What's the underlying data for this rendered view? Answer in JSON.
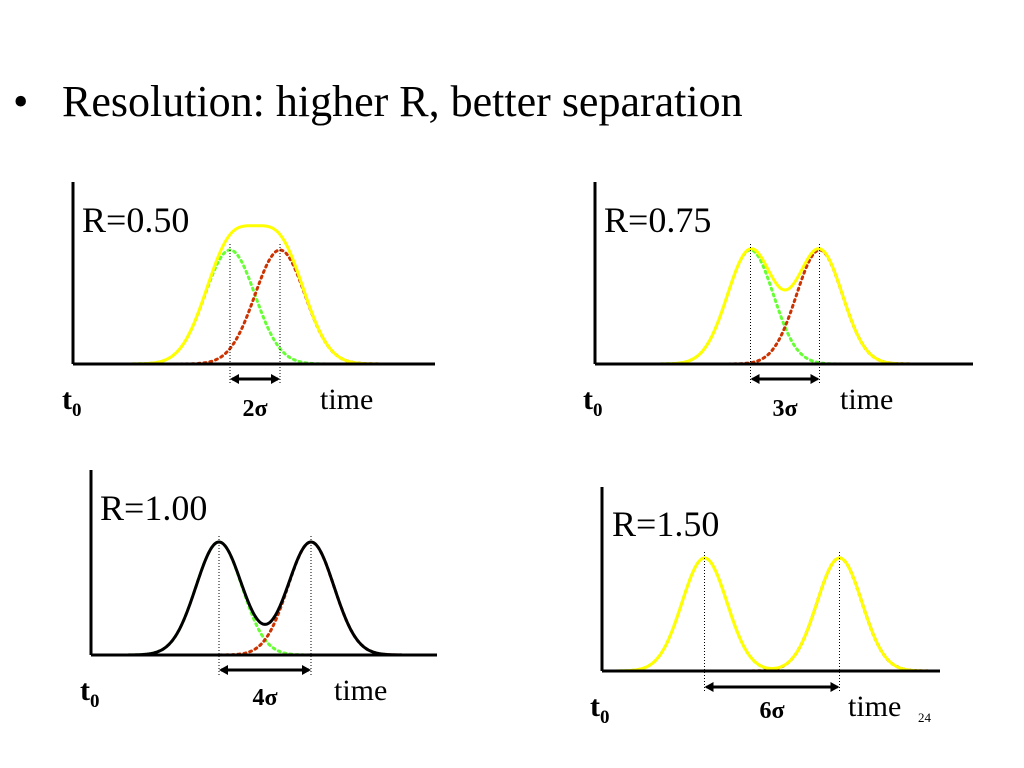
{
  "slide": {
    "bullet": "•",
    "title": "Resolution: higher R, better separation",
    "page_number": "24"
  },
  "style": {
    "total_peak_color": "#ffff00",
    "left_peak_color": "#66ff33",
    "right_peak_color": "#cc3300",
    "axis_color": "#000000"
  },
  "chart_data": [
    {
      "type": "line",
      "title": "R=0.50",
      "xlabel": "time",
      "origin_label": "t",
      "origin_subscript": "0",
      "separation_label": "2σ",
      "separation_sigma": 2,
      "sigma_units": 1,
      "total_color": "#ffff00",
      "series": [
        {
          "name": "",
          "role": "total",
          "center": -1,
          "height": 1
        },
        {
          "name": "",
          "role": "left",
          "center": -1,
          "height": 1
        },
        {
          "name": "",
          "role": "right",
          "center": 1,
          "height": 1
        }
      ]
    },
    {
      "type": "line",
      "title": "R=0.75",
      "xlabel": "time",
      "origin_label": "t",
      "origin_subscript": "0",
      "separation_label": "3σ",
      "separation_sigma": 3,
      "sigma_units": 1,
      "total_color": "#ffff00",
      "series": [
        {
          "name": "",
          "role": "total",
          "center": -1.5,
          "height": 1
        },
        {
          "name": "",
          "role": "left",
          "center": -1.5,
          "height": 1
        },
        {
          "name": "",
          "role": "right",
          "center": 1.5,
          "height": 1
        }
      ]
    },
    {
      "type": "line",
      "title": "R=1.00",
      "xlabel": "time",
      "origin_label": "t",
      "origin_subscript": "0",
      "separation_label": "4σ",
      "separation_sigma": 4,
      "sigma_units": 1,
      "total_color": "#000000",
      "series": [
        {
          "name": "",
          "role": "total",
          "center": -2,
          "height": 1
        },
        {
          "name": "",
          "role": "left",
          "center": -2,
          "height": 1
        },
        {
          "name": "",
          "role": "right",
          "center": 2,
          "height": 1
        }
      ]
    },
    {
      "type": "line",
      "title": "R=1.50",
      "xlabel": "time",
      "origin_label": "t",
      "origin_subscript": "0",
      "separation_label": "6σ",
      "separation_sigma": 6,
      "sigma_units": 1,
      "total_color": "#ffff00",
      "series": [
        {
          "name": "",
          "role": "total",
          "center": -3,
          "height": 1
        },
        {
          "name": "",
          "role": "left",
          "center": -3,
          "height": 1
        },
        {
          "name": "",
          "role": "right",
          "center": 3,
          "height": 1
        }
      ]
    }
  ]
}
